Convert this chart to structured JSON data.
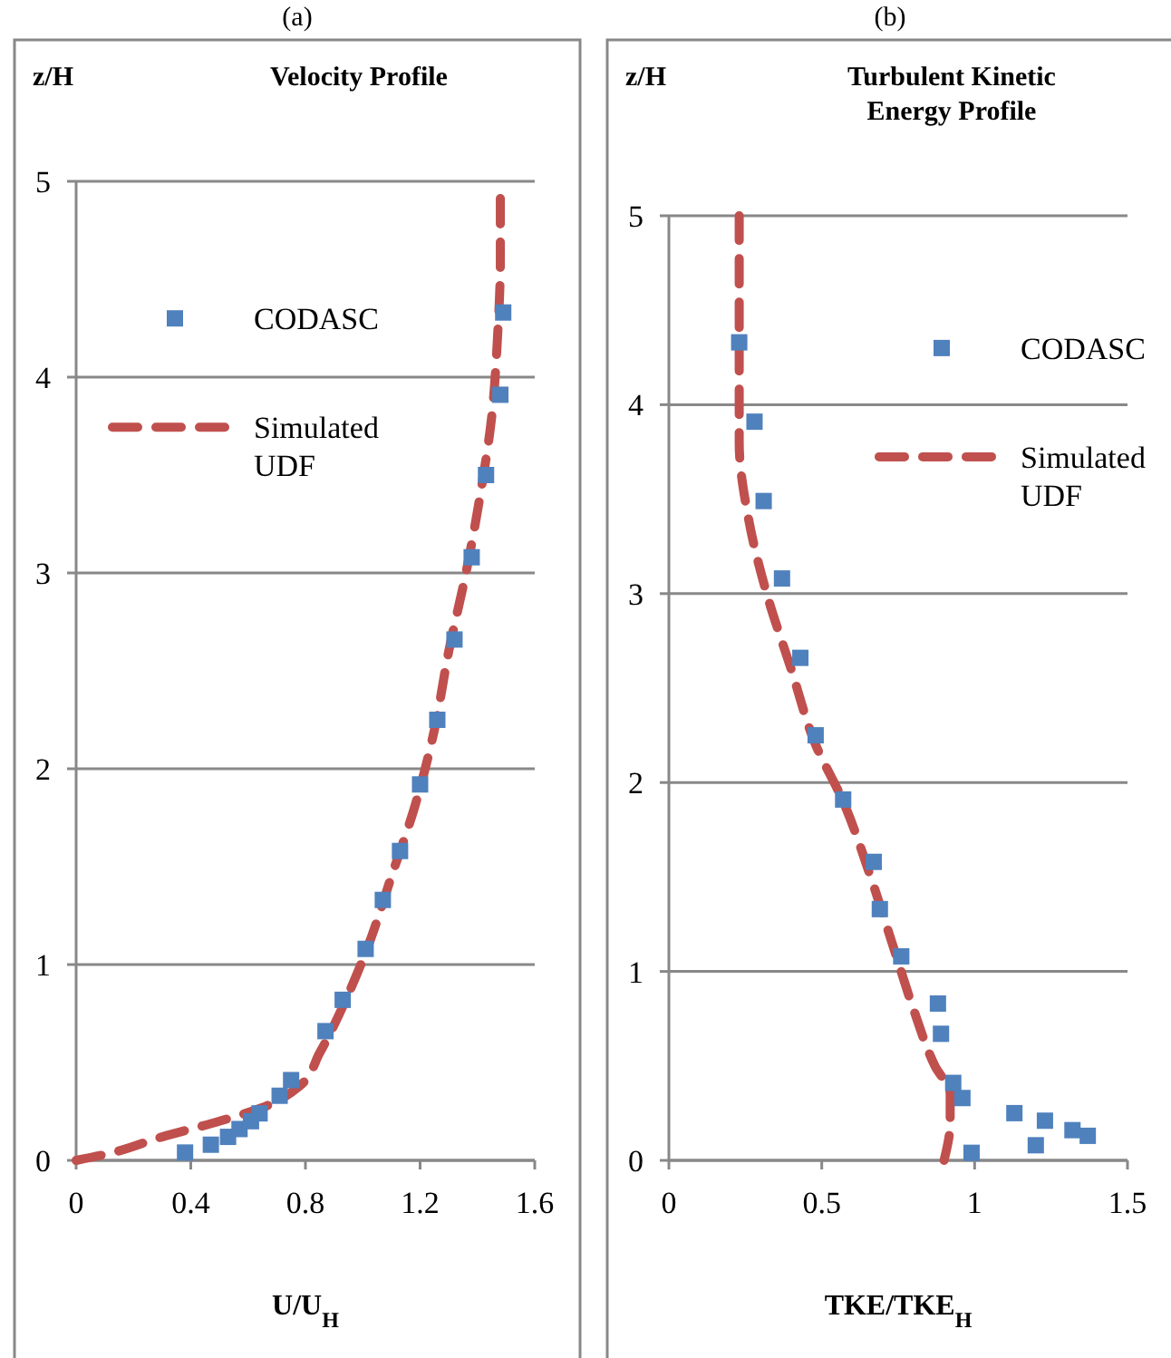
{
  "chart_data": [
    {
      "type": "scatter",
      "title": "Velocity Profile",
      "annotations": [
        "(a)"
      ],
      "xlabel": "U/U$_{H}$",
      "ylabel": "z/H",
      "xlim": [
        0,
        1.6
      ],
      "xticks": [
        0,
        0.4,
        0.8,
        1.2,
        1.6
      ],
      "ylim": [
        0,
        5
      ],
      "yticks": [
        0,
        1,
        2,
        3,
        4,
        5
      ],
      "grid": "y",
      "legend": "left",
      "series": [
        {
          "name": "CODASC",
          "marker": "square",
          "color": "#4f81bd",
          "x": [
            0.38,
            0.47,
            0.53,
            0.57,
            0.61,
            0.64,
            0.71,
            0.75,
            0.87,
            0.93,
            1.01,
            1.07,
            1.13,
            1.2,
            1.26,
            1.32,
            1.38,
            1.43,
            1.48,
            1.49
          ],
          "values": [
            0.04,
            0.08,
            0.12,
            0.16,
            0.2,
            0.24,
            0.33,
            0.41,
            0.66,
            0.82,
            1.08,
            1.33,
            1.58,
            1.92,
            2.25,
            2.66,
            3.08,
            3.5,
            3.91,
            4.33
          ]
        },
        {
          "name": "Simulated UDF",
          "type": "line",
          "line_style": "dashed",
          "color": "#c0504d",
          "x": [
            0,
            0.1,
            0.3,
            0.5,
            0.65,
            0.78,
            0.85,
            0.95,
            1.02,
            1.1,
            1.18,
            1.25,
            1.3,
            1.36,
            1.41,
            1.45,
            1.47,
            1.48,
            1.48
          ],
          "values": [
            0,
            0.03,
            0.12,
            0.2,
            0.27,
            0.38,
            0.55,
            0.85,
            1.1,
            1.45,
            1.8,
            2.2,
            2.6,
            3.0,
            3.4,
            3.8,
            4.2,
            4.6,
            5.0
          ]
        }
      ]
    },
    {
      "type": "scatter",
      "title": "Turbulent Kinetic Energy Profile",
      "annotations": [
        "(b)"
      ],
      "xlabel": "TKE/TKE$_{H}$",
      "ylabel": "z/H",
      "xlim": [
        0,
        1.5
      ],
      "xticks": [
        0,
        0.5,
        1,
        1.5
      ],
      "ylim": [
        0,
        5
      ],
      "yticks": [
        0,
        1,
        2,
        3,
        4,
        5
      ],
      "grid": "y",
      "legend": "right",
      "series": [
        {
          "name": "CODASC",
          "marker": "square",
          "color": "#4f81bd",
          "x": [
            0.23,
            0.28,
            0.31,
            0.37,
            0.43,
            0.48,
            0.57,
            0.67,
            0.69,
            0.76,
            0.88,
            0.89,
            0.93,
            0.96,
            0.99,
            1.13,
            1.2,
            1.23,
            1.32,
            1.37
          ],
          "values": [
            4.33,
            3.91,
            3.49,
            3.08,
            2.66,
            2.25,
            1.91,
            1.58,
            1.33,
            1.08,
            0.83,
            0.67,
            0.41,
            0.33,
            0.04,
            0.25,
            0.08,
            0.21,
            0.16,
            0.13
          ]
        },
        {
          "name": "Simulated UDF",
          "type": "line",
          "line_style": "dashed",
          "color": "#c0504d",
          "x": [
            0.9,
            0.92,
            0.92,
            0.87,
            0.8,
            0.74,
            0.66,
            0.57,
            0.48,
            0.4,
            0.32,
            0.26,
            0.23,
            0.23,
            0.23,
            0.23
          ],
          "values": [
            0,
            0.2,
            0.35,
            0.5,
            0.8,
            1.1,
            1.5,
            1.9,
            2.2,
            2.6,
            3.0,
            3.4,
            3.8,
            4.2,
            4.6,
            5.0
          ]
        }
      ]
    }
  ]
}
